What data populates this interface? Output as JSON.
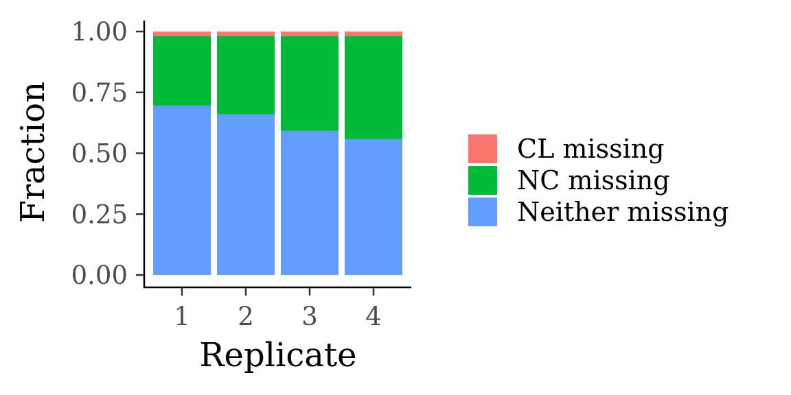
{
  "chart_data": {
    "type": "bar",
    "stacked": true,
    "normalized": true,
    "categories": [
      "1",
      "2",
      "3",
      "4"
    ],
    "series": [
      {
        "name": "Neither missing",
        "color": "#619CFF",
        "values": [
          0.695,
          0.66,
          0.592,
          0.558
        ]
      },
      {
        "name": "NC missing",
        "color": "#00BA38",
        "values": [
          0.287,
          0.322,
          0.39,
          0.424
        ]
      },
      {
        "name": "CL missing",
        "color": "#F8766D",
        "values": [
          0.018,
          0.018,
          0.018,
          0.018
        ]
      }
    ],
    "xlabel": "Replicate",
    "ylabel": "Fraction",
    "ylim": [
      0,
      1
    ],
    "yticks": [
      "0.00",
      "0.25",
      "0.50",
      "0.75",
      "1.00"
    ],
    "legend": {
      "placement": "right",
      "entries": [
        {
          "label": "CL missing",
          "color": "#F8766D"
        },
        {
          "label": "NC missing",
          "color": "#00BA38"
        },
        {
          "label": "Neither missing",
          "color": "#619CFF"
        }
      ]
    },
    "grid": false
  }
}
